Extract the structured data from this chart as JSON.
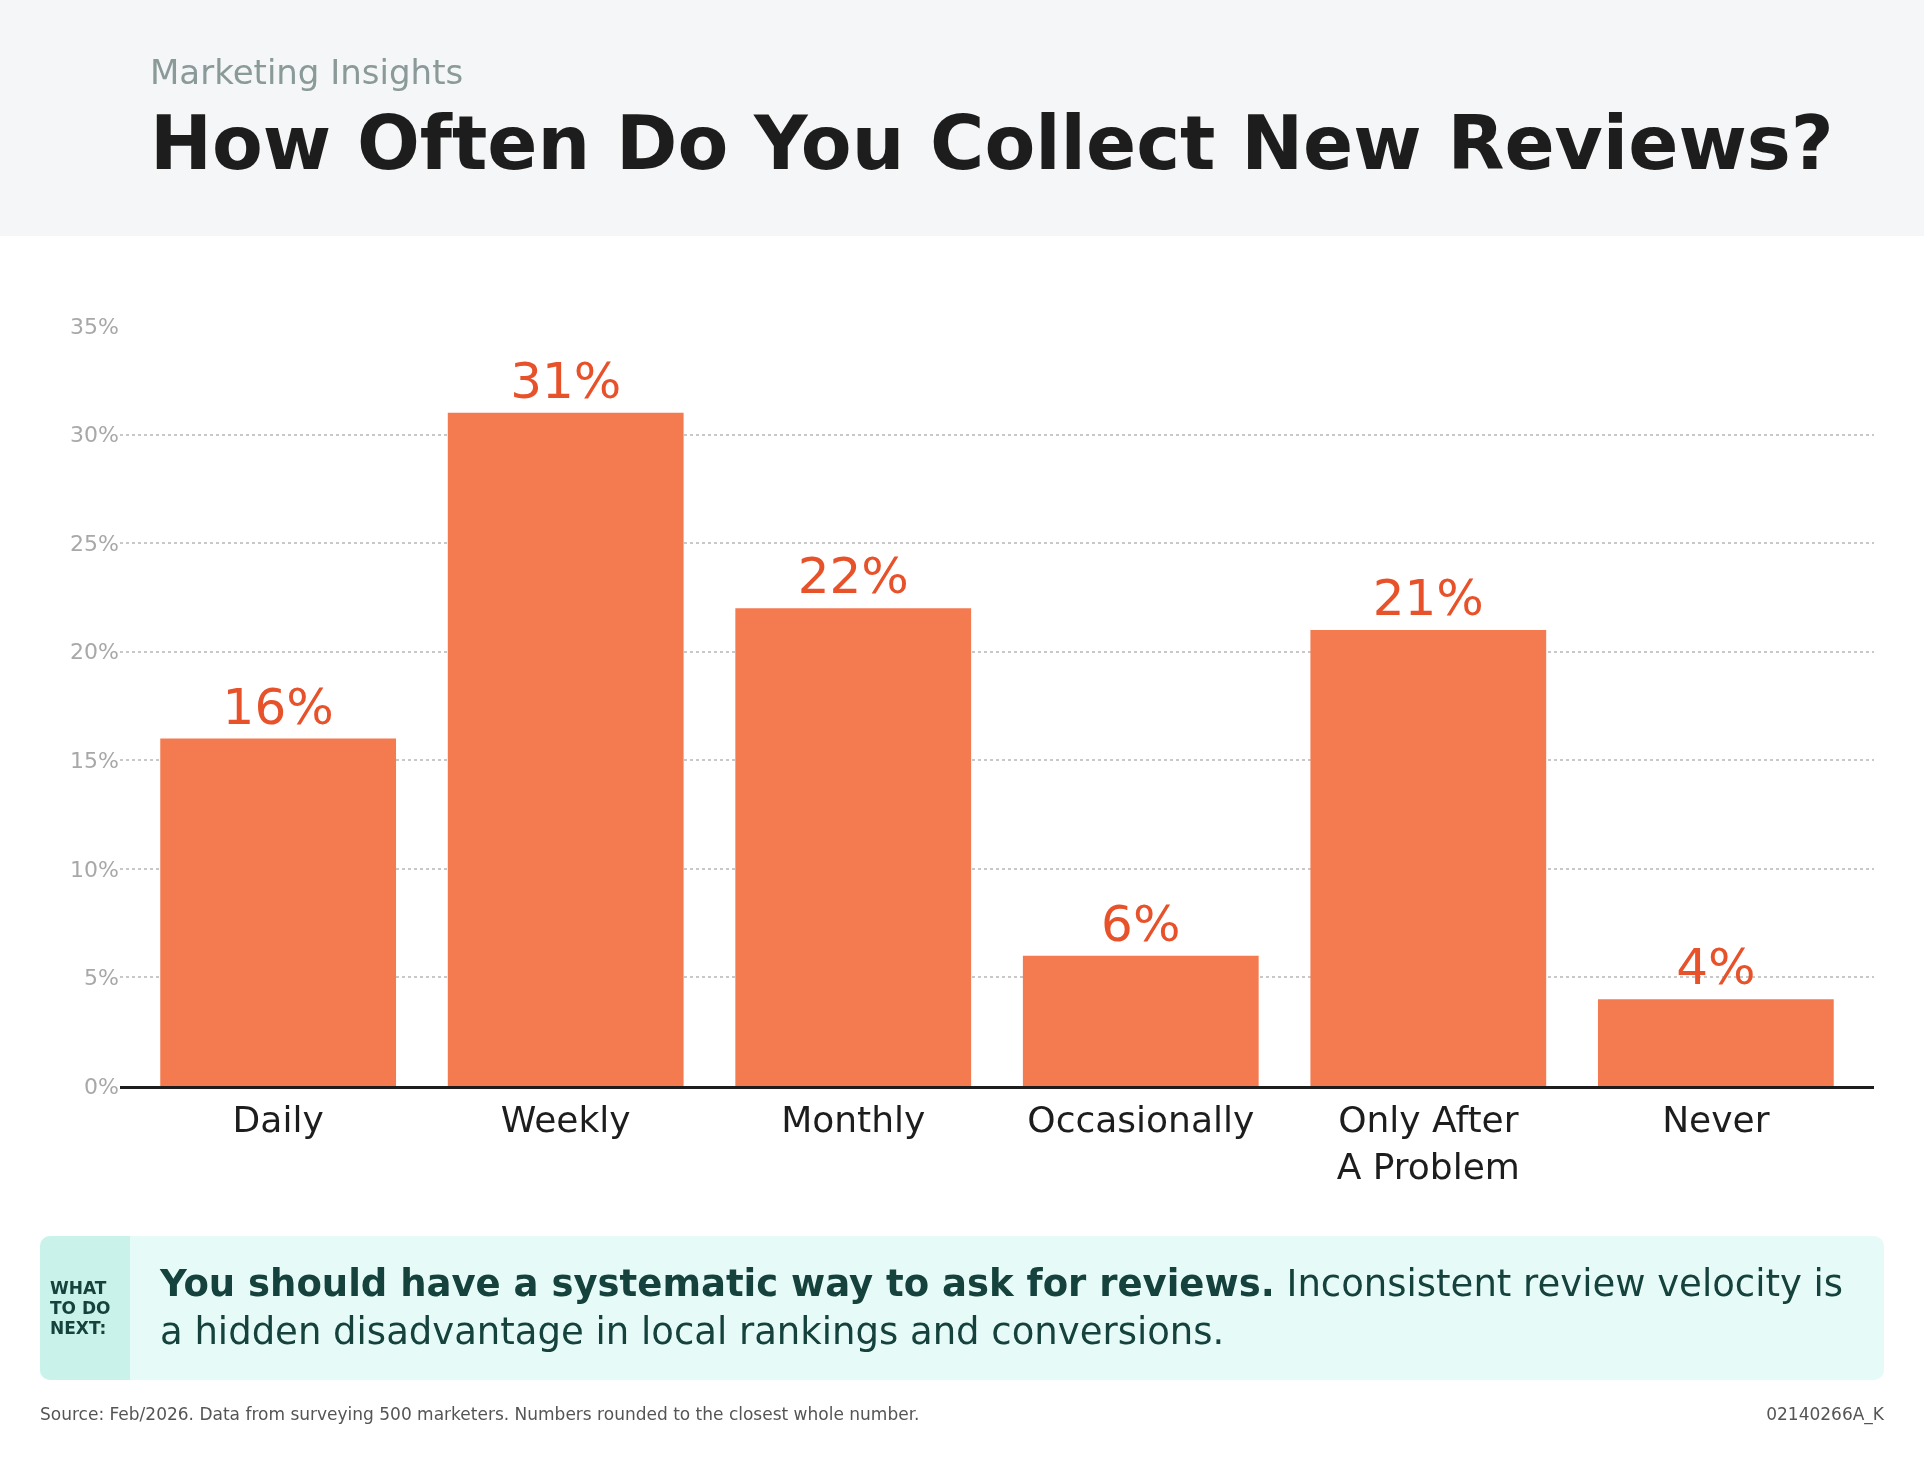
{
  "chart_data": {
    "type": "bar",
    "subtitle": "Marketing Insights",
    "title": "How Often Do You Collect New Reviews?",
    "categories": [
      "Daily",
      "Weekly",
      "Monthly",
      "Occasionally",
      "Only After A Problem",
      "Never"
    ],
    "values": [
      16,
      31,
      22,
      6,
      21,
      4
    ],
    "color": "#f47a50",
    "value_labels": [
      "16%",
      "31%",
      "22%",
      "6%",
      "21%",
      "4%"
    ],
    "ylim": [
      0,
      35
    ],
    "yticks": [
      {
        "value": 0,
        "label": "0%"
      },
      {
        "value": 5,
        "label": "5%"
      },
      {
        "value": 10,
        "label": "10%"
      },
      {
        "value": 15,
        "label": "15%"
      },
      {
        "value": 20,
        "label": "20%"
      },
      {
        "value": 25,
        "label": "25%"
      },
      {
        "value": 30,
        "label": "30%"
      },
      {
        "value": 35,
        "label": "35%"
      }
    ],
    "grid": "y",
    "legend": false,
    "annotations": [
      "WHAT TO DO NEXT:",
      "You should have a systematic way to ask for reviews.",
      "Inconsistent review velocity is a hidden disadvantage in local rankings and conversions.",
      "Source: Feb/2026. Data from surveying 500 marketers. Numbers rounded to the closest whole number.",
      "02140266A_K"
    ]
  }
}
